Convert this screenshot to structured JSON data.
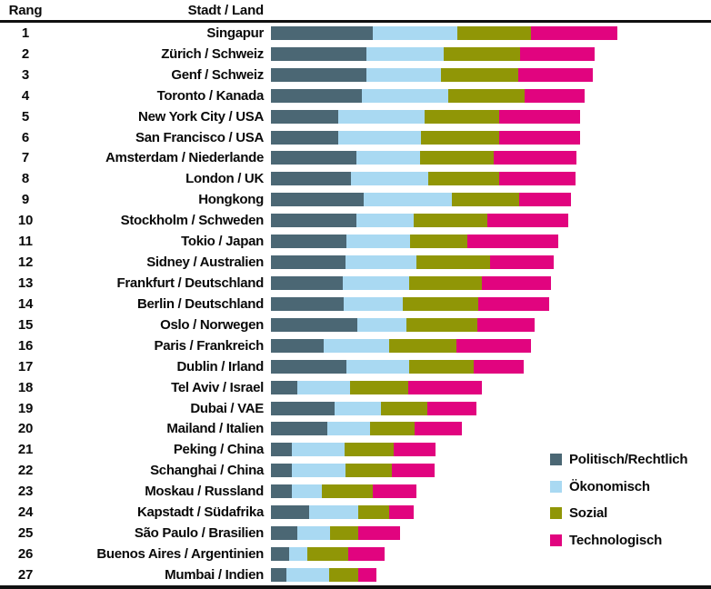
{
  "header": {
    "rank_label": "Rang",
    "city_label": "Stadt / Land"
  },
  "legend": {
    "position": "right-bottom",
    "items": [
      {
        "key": "politisch",
        "label": "Politisch/Rechtlich",
        "color": "#4b6774"
      },
      {
        "key": "oekonomisch",
        "label": "Ökonomisch",
        "color": "#a9d9f2"
      },
      {
        "key": "sozial",
        "label": "Sozial",
        "color": "#909606"
      },
      {
        "key": "technologisch",
        "label": "Technologisch",
        "color": "#e1047f"
      }
    ]
  },
  "chart_data": {
    "type": "bar",
    "orientation": "horizontal",
    "stacked": true,
    "grid": false,
    "axis": "none (no numeric axis shown; values are relative segment lengths in screen px)",
    "legend_position": "right-bottom",
    "series_names": [
      "Politisch/Rechtlich",
      "Ökonomisch",
      "Sozial",
      "Technologisch"
    ],
    "rows": [
      {
        "rank": "1",
        "city": "Singapur",
        "values": [
          112,
          93,
          81,
          95
        ]
      },
      {
        "rank": "2",
        "city": "Zürich / Schweiz",
        "values": [
          105,
          85,
          84,
          82
        ]
      },
      {
        "rank": "3",
        "city": "Genf / Schweiz",
        "values": [
          105,
          82,
          85,
          82
        ]
      },
      {
        "rank": "4",
        "city": "Toronto / Kanada",
        "values": [
          100,
          95,
          84,
          66
        ]
      },
      {
        "rank": "5",
        "city": "New York City / USA",
        "values": [
          74,
          95,
          82,
          89
        ]
      },
      {
        "rank": "6",
        "city": "San Francisco / USA",
        "values": [
          74,
          91,
          86,
          89
        ]
      },
      {
        "rank": "7",
        "city": "Amsterdam / Niederlande",
        "values": [
          94,
          70,
          81,
          91
        ]
      },
      {
        "rank": "8",
        "city": "London / UK",
        "values": [
          88,
          85,
          78,
          84
        ]
      },
      {
        "rank": "9",
        "city": "Hongkong",
        "values": [
          102,
          97,
          74,
          57
        ]
      },
      {
        "rank": "10",
        "city": "Stockholm / Schweden",
        "values": [
          94,
          63,
          81,
          89
        ]
      },
      {
        "rank": "11",
        "city": "Tokio / Japan",
        "values": [
          83,
          70,
          63,
          100
        ]
      },
      {
        "rank": "12",
        "city": "Sidney / Australien",
        "values": [
          82,
          78,
          81,
          70
        ]
      },
      {
        "rank": "13",
        "city": "Frankfurt / Deutschland",
        "values": [
          79,
          73,
          80,
          76
        ]
      },
      {
        "rank": "14",
        "city": "Berlin / Deutschland",
        "values": [
          80,
          65,
          83,
          78
        ]
      },
      {
        "rank": "15",
        "city": "Oslo / Norwegen",
        "values": [
          95,
          54,
          78,
          63
        ]
      },
      {
        "rank": "16",
        "city": "Paris / Frankreich",
        "values": [
          58,
          72,
          74,
          82
        ]
      },
      {
        "rank": "17",
        "city": "Dublin / Irland",
        "values": [
          83,
          69,
          71,
          55
        ]
      },
      {
        "rank": "18",
        "city": "Tel Aviv / Israel",
        "values": [
          29,
          58,
          64,
          81
        ]
      },
      {
        "rank": "19",
        "city": "Dubai / VAE",
        "values": [
          70,
          51,
          51,
          54
        ]
      },
      {
        "rank": "20",
        "city": "Mailand / Italien",
        "values": [
          62,
          47,
          49,
          52
        ]
      },
      {
        "rank": "21",
        "city": "Peking / China",
        "values": [
          23,
          58,
          54,
          46
        ]
      },
      {
        "rank": "22",
        "city": "Schanghai / China",
        "values": [
          23,
          59,
          51,
          47
        ]
      },
      {
        "rank": "23",
        "city": "Moskau / Russland",
        "values": [
          23,
          33,
          56,
          48
        ]
      },
      {
        "rank": "24",
        "city": "Kapstadt / Südafrika",
        "values": [
          42,
          54,
          34,
          27
        ]
      },
      {
        "rank": "25",
        "city": "São Paulo / Brasilien",
        "values": [
          29,
          36,
          31,
          46
        ]
      },
      {
        "rank": "26",
        "city": "Buenos Aires / Argentinien",
        "values": [
          20,
          20,
          45,
          40
        ]
      },
      {
        "rank": "27",
        "city": "Mumbai / Indien",
        "values": [
          17,
          47,
          32,
          20
        ]
      }
    ]
  }
}
